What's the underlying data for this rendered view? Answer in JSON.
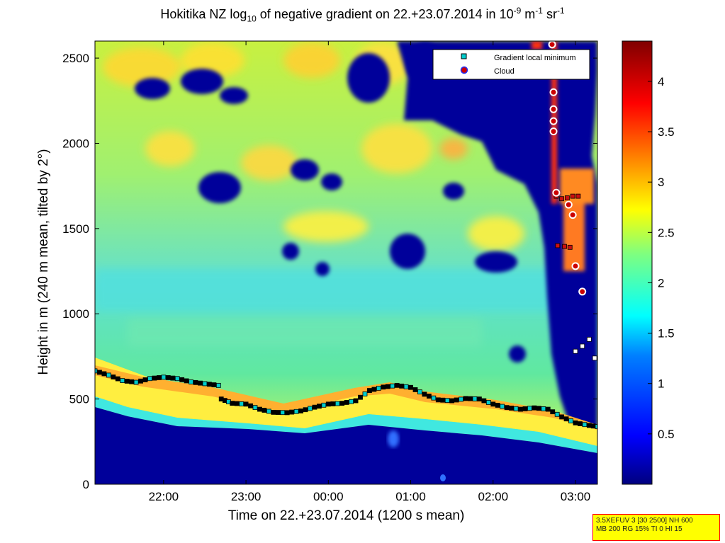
{
  "chart_data": {
    "type": "heatmap",
    "title": {
      "prefix": "Hokitika NZ log",
      "sub": "10",
      "middle": " of negative gradient on 22.+23.07.2014 in 10",
      "sup1": "-9",
      "unit1": " m",
      "sup2": "-1",
      "unit2": " sr",
      "sup3": "-1"
    },
    "xlabel": "Time on 22.+23.07.2014 (1200 s mean)",
    "ylabel": "Height in m (240 m mean, tilted by 2°)",
    "xlim": [
      "21:10",
      "03:16"
    ],
    "ylim": [
      0,
      2600
    ],
    "x_ticks": [
      "22:00",
      "23:00",
      "00:00",
      "01:00",
      "02:00",
      "03:00"
    ],
    "y_ticks": [
      0,
      500,
      1000,
      1500,
      2000,
      2500
    ],
    "colorbar": {
      "range": [
        0,
        4.4
      ],
      "ticks": [
        0.5,
        1,
        1.5,
        2,
        2.5,
        3,
        3.5,
        4
      ],
      "colors": [
        "#00007f",
        "#0000ff",
        "#007fff",
        "#00ffff",
        "#7fff7f",
        "#ffff00",
        "#ff7f00",
        "#ff0000",
        "#7f0000"
      ]
    },
    "legend": {
      "placement": "top-right",
      "entries": [
        {
          "label": "Gradient local minimum",
          "marker": "square",
          "color": "#00cccc"
        },
        {
          "label": "Cloud",
          "marker": "circle",
          "color": "#cc0000"
        }
      ]
    },
    "series": [
      {
        "name": "Gradient local minimum",
        "points": [
          [
            "21:10",
            665
          ],
          [
            "21:20",
            640
          ],
          [
            "21:30",
            608
          ],
          [
            "21:40",
            598
          ],
          [
            "21:50",
            620
          ],
          [
            "22:00",
            628
          ],
          [
            "22:10",
            620
          ],
          [
            "22:20",
            600
          ],
          [
            "22:30",
            590
          ],
          [
            "22:40",
            580
          ],
          [
            "22:42",
            500
          ],
          [
            "22:50",
            475
          ],
          [
            "23:00",
            470
          ],
          [
            "23:10",
            440
          ],
          [
            "23:20",
            422
          ],
          [
            "23:30",
            420
          ],
          [
            "23:40",
            430
          ],
          [
            "23:50",
            452
          ],
          [
            "00:00",
            470
          ],
          [
            "00:10",
            475
          ],
          [
            "00:20",
            490
          ],
          [
            "00:30",
            550
          ],
          [
            "00:40",
            570
          ],
          [
            "00:50",
            580
          ],
          [
            "01:00",
            568
          ],
          [
            "01:10",
            528
          ],
          [
            "01:20",
            495
          ],
          [
            "01:30",
            490
          ],
          [
            "01:40",
            503
          ],
          [
            "01:50",
            500
          ],
          [
            "02:00",
            470
          ],
          [
            "02:10",
            450
          ],
          [
            "02:20",
            440
          ],
          [
            "02:30",
            448
          ],
          [
            "02:40",
            440
          ],
          [
            "02:50",
            395
          ],
          [
            "03:00",
            360
          ],
          [
            "03:10",
            345
          ],
          [
            "03:16",
            338
          ],
          [
            "02:46",
            1690
          ],
          [
            "02:50",
            1675
          ],
          [
            "02:54",
            1680
          ],
          [
            "02:58",
            1690
          ],
          [
            "03:02",
            1690
          ],
          [
            "02:47",
            1400
          ],
          [
            "02:52",
            1395
          ],
          [
            "02:56",
            1390
          ],
          [
            "03:00",
            780
          ],
          [
            "03:05",
            810
          ],
          [
            "03:10",
            850
          ],
          [
            "03:14",
            740
          ]
        ]
      },
      {
        "name": "Cloud",
        "points": [
          [
            "02:43",
            2580
          ],
          [
            "02:44",
            2300
          ],
          [
            "02:44",
            2200
          ],
          [
            "02:44",
            2130
          ],
          [
            "02:44",
            2070
          ],
          [
            "02:46",
            1710
          ],
          [
            "02:55",
            1640
          ],
          [
            "02:58",
            1580
          ],
          [
            "03:00",
            1280
          ],
          [
            "03:05",
            1130
          ]
        ]
      }
    ]
  },
  "info_box": {
    "line1": "3.5XEFUV 3 [30 2500] NH 600",
    "line2": "MB 200 RG 15% TI 0 HI 15"
  }
}
